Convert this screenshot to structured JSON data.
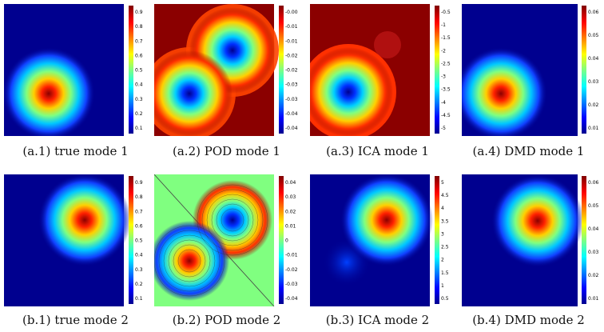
{
  "captions": {
    "a1": "(a.1) true mode 1",
    "a2": "(a.2) POD mode 1",
    "a3": "(a.3) ICA mode 1",
    "a4": "(a.4) DMD mode 1",
    "b1": "(b.1) true mode 2",
    "b2": "(b.2) POD mode 2",
    "b3": "(b.3) ICA mode 2",
    "b4": "(b.4) DMD mode 2"
  },
  "colorbars": {
    "a1": [
      "0.9",
      "0.8",
      "0.7",
      "0.6",
      "0.5",
      "0.4",
      "0.3",
      "0.2",
      "0.1"
    ],
    "a2": [
      "-0.005",
      "-0.01",
      "-0.015",
      "-0.02",
      "-0.025",
      "-0.03",
      "-0.035",
      "-0.04",
      "-0.045"
    ],
    "a3": [
      "-0.5",
      "-1",
      "-1.5",
      "-2",
      "-2.5",
      "-3",
      "-3.5",
      "-4",
      "-4.5",
      "-5"
    ],
    "a4": [
      "0.06",
      "0.05",
      "0.04",
      "0.03",
      "0.02",
      "0.01"
    ],
    "b1": [
      "0.9",
      "0.8",
      "0.7",
      "0.6",
      "0.5",
      "0.4",
      "0.3",
      "0.2",
      "0.1"
    ],
    "b2": [
      "0.04",
      "0.03",
      "0.02",
      "0.01",
      "0",
      "-0.01",
      "-0.02",
      "-0.03",
      "-0.04"
    ],
    "b3": [
      "5",
      "4.5",
      "4",
      "3.5",
      "3",
      "2.5",
      "2",
      "1.5",
      "1",
      "0.5"
    ],
    "b4": [
      "0.06",
      "0.05",
      "0.04",
      "0.03",
      "0.02",
      "0.01"
    ]
  },
  "colors": {
    "deep_blue": "#00008f",
    "dark_red": "#8b0000",
    "mid_green": "#80ff80"
  }
}
